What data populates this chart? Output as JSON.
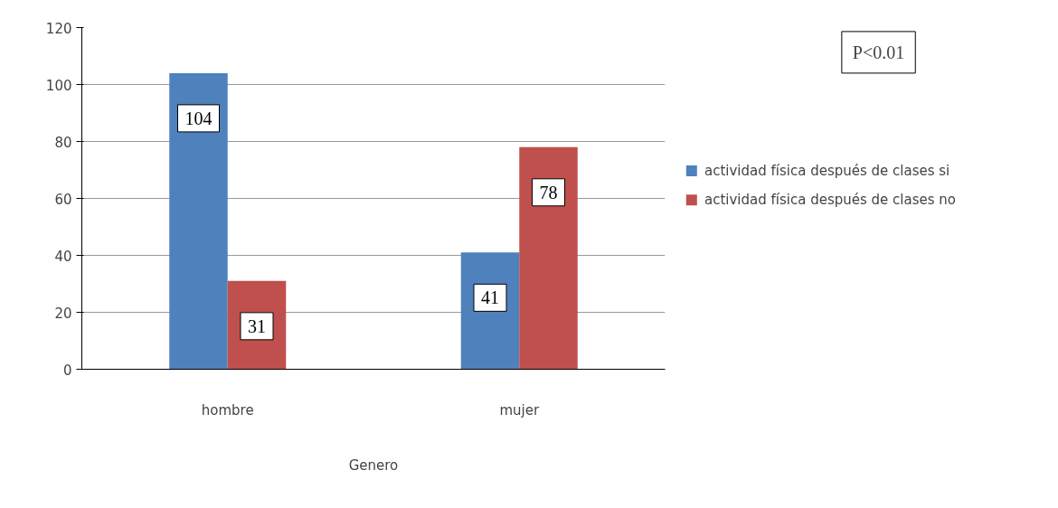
{
  "chart_data": {
    "type": "bar",
    "xlabel": "Genero",
    "categories": [
      "hombre",
      "mujer"
    ],
    "series": [
      {
        "name": "actividad física después de clases si",
        "color": "#4f81bd",
        "values": [
          104,
          41
        ]
      },
      {
        "name": "actividad física después de clases no",
        "color": "#c0504d",
        "values": [
          31,
          78
        ]
      }
    ],
    "ylim": [
      0,
      120
    ],
    "yticks": [
      0,
      20,
      40,
      60,
      80,
      100,
      120
    ],
    "grid": "y",
    "legend": "right",
    "data_labels": true,
    "annotations": [
      "P<0.01"
    ]
  }
}
